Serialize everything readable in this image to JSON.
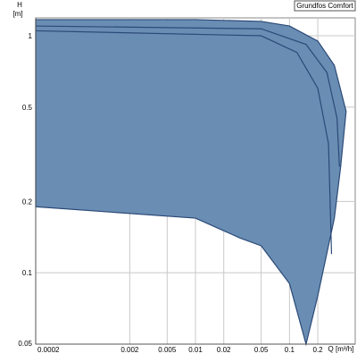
{
  "chart_data": {
    "type": "area",
    "legend_box": "Grundfos Comfort",
    "y_label": "H",
    "y_unit": "[m]",
    "x_label": "Q [m³/h]",
    "log_x": true,
    "log_y": true,
    "grid": true,
    "xlim": [
      0.0002,
      0.5
    ],
    "ylim": [
      0.05,
      1.19
    ],
    "xticks": [
      0.0002,
      0.002,
      0.005,
      0.01,
      0.02,
      0.05,
      0.1,
      0.2
    ],
    "yticks": [
      1,
      0.5,
      0.2,
      0.1,
      0.05
    ],
    "fill_color": "#6a8db3",
    "line_color": "#2b4a78",
    "series": [
      {
        "x": [
          0.0002,
          0.01,
          0.05,
          0.1,
          0.2,
          0.3,
          0.4,
          0.35,
          0.3,
          0.2,
          0.15,
          0.1,
          0.05,
          0.03,
          0.01,
          0.0002
        ],
        "values": [
          1.17,
          1.17,
          1.15,
          1.1,
          0.95,
          0.75,
          0.48,
          0.28,
          0.17,
          0.08,
          0.05,
          0.09,
          0.13,
          0.14,
          0.17,
          0.19
        ]
      },
      {
        "x": [
          0.0002,
          0.05,
          0.15,
          0.25,
          0.32,
          0.34
        ],
        "values": [
          1.1,
          1.07,
          0.92,
          0.7,
          0.45,
          0.28
        ]
      },
      {
        "x": [
          0.0002,
          0.05,
          0.12,
          0.2,
          0.26,
          0.28
        ],
        "values": [
          1.05,
          1.0,
          0.85,
          0.6,
          0.35,
          0.12
        ]
      }
    ]
  }
}
